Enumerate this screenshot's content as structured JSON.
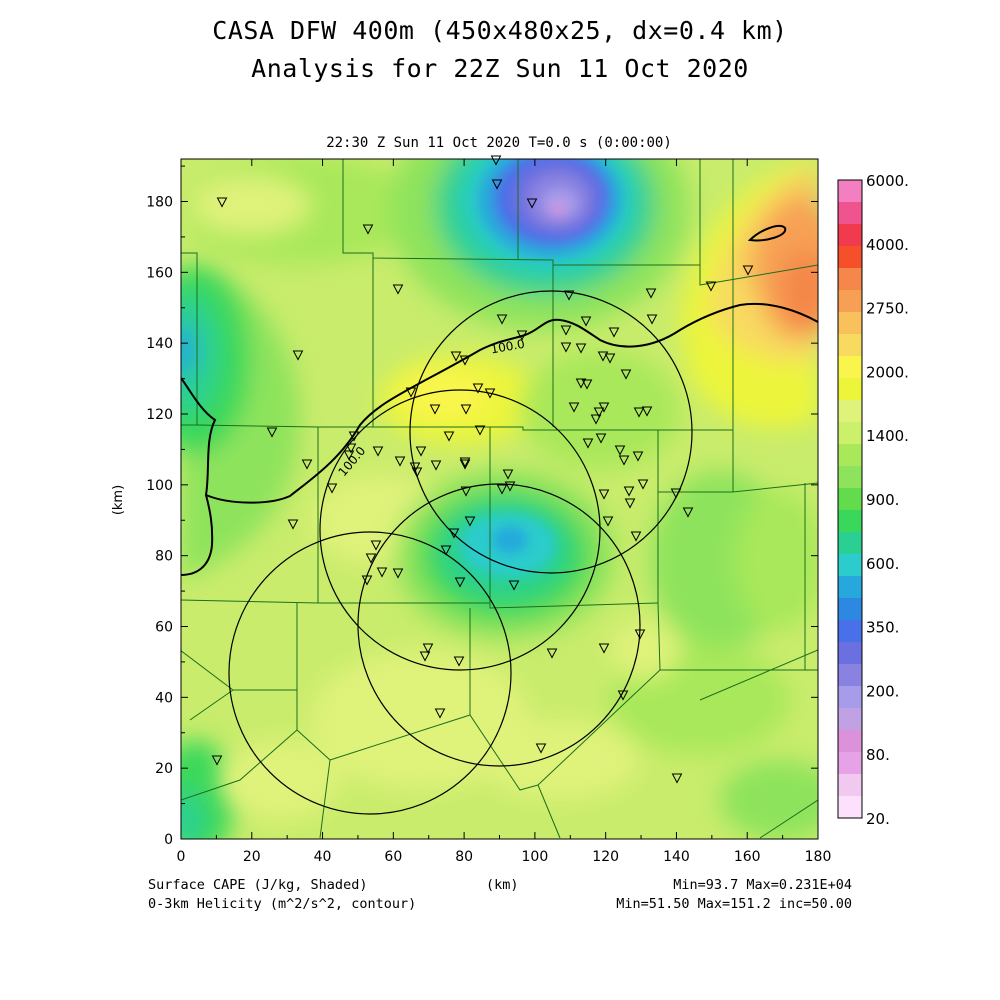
{
  "title_line1": "CASA DFW 400m (450x480x25, dx=0.4 km)",
  "title_line2": "Analysis for 22Z Sun 11 Oct 2020",
  "plot_subtitle": "22:30 Z Sun 11 Oct 2020    T=0.0 s (0:00:00)",
  "xlabel": "(km)",
  "ylabel": "(km)",
  "x_ticks": [
    "0",
    "20",
    "40",
    "60",
    "80",
    "100",
    "120",
    "140",
    "160",
    "180"
  ],
  "y_ticks": [
    "0",
    "20",
    "40",
    "60",
    "80",
    "100",
    "120",
    "140",
    "160",
    "180"
  ],
  "x_range": [
    0,
    180
  ],
  "y_range": [
    0,
    192
  ],
  "shaded_field_label": "Surface CAPE (J/kg, Shaded)",
  "contour_field_label": "0-3km Helicity (m^2/s^2, contour)",
  "shaded_stats": "Min=93.7 Max=0.231E+04",
  "contour_stats": "Min=51.50 Max=151.2 inc=50.00",
  "contour_label": "100.0",
  "colorbar": {
    "labels": [
      "6000.",
      "4000.",
      "2750.",
      "2000.",
      "1400.",
      "900.",
      "600.",
      "350.",
      "200.",
      "80.",
      "20."
    ],
    "colors_top_to_bottom": [
      "#f27fc0",
      "#f0548f",
      "#f23a4e",
      "#f6502b",
      "#f48749",
      "#f7a055",
      "#f8c15c",
      "#f8da60",
      "#f9f54d",
      "#ecf53a",
      "#dff27a",
      "#cdf06a",
      "#a9e85a",
      "#8ee35c",
      "#62dc4c",
      "#3ad85a",
      "#2ad092",
      "#2ccccc",
      "#27a8dc",
      "#2c88e0",
      "#4870e8",
      "#6b70e0",
      "#8a82e0",
      "#a79cea",
      "#c0a2e4",
      "#dc92da",
      "#e6a2e6",
      "#f0c8f0",
      "#fce0fc"
    ]
  },
  "colors": {
    "background_field": "#c9ec6c",
    "county_lines": "#1c6f1c",
    "contour": "#000000"
  }
}
